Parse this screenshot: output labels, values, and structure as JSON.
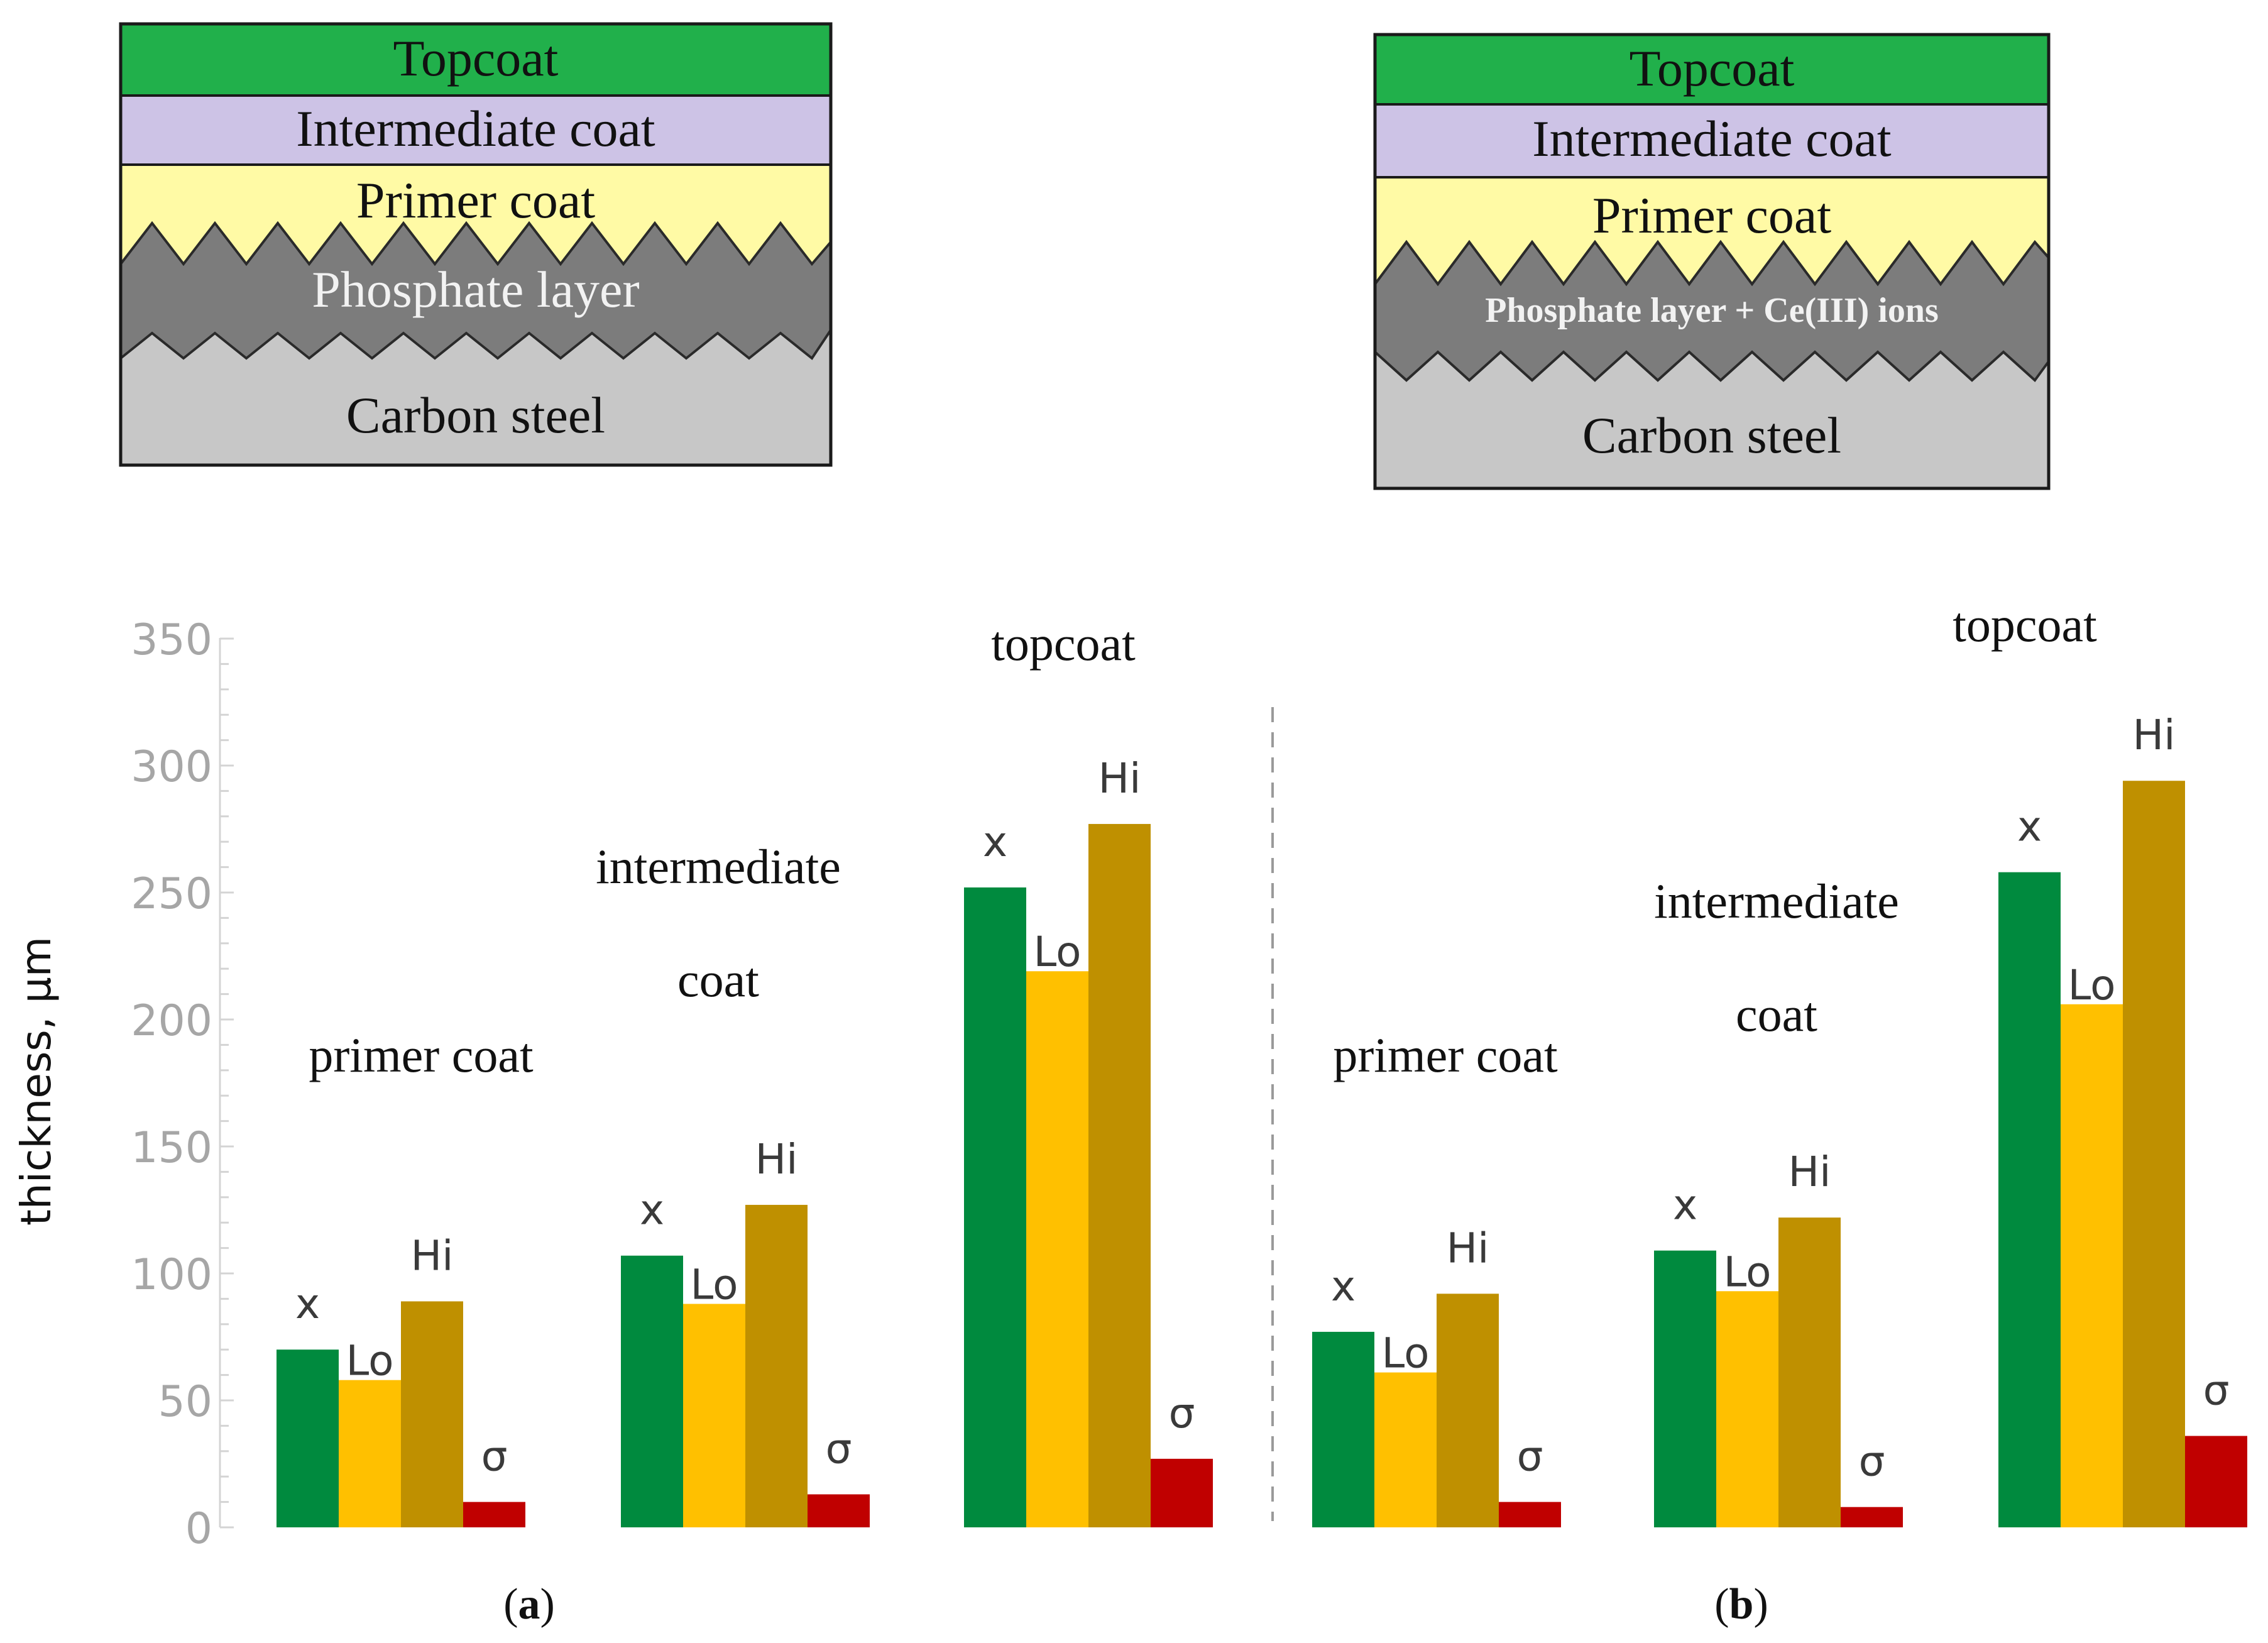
{
  "colors": {
    "mean": "#008a3e",
    "low": "#ffc000",
    "high": "#bf9000",
    "sigma": "#c00000",
    "topcoat_layer": "#21b04b",
    "intermediate_layer": "#cdc3e6",
    "primer_layer": "#fffaa5",
    "phosphate_layer": "#7c7c7c",
    "steel_layer": "#c7c7c7"
  },
  "diagrams": [
    {
      "panel": "a",
      "layers": {
        "topcoat": "Topcoat",
        "intermediate": "Intermediate coat",
        "primer": "Primer coat",
        "phosphate": "Phosphate layer",
        "steel": "Carbon steel"
      }
    },
    {
      "panel": "b",
      "layers": {
        "topcoat": "Topcoat",
        "intermediate": "Intermediate coat",
        "primer": "Primer coat",
        "phosphate": "Phosphate layer + Ce(III) ions",
        "steel": "Carbon steel"
      }
    }
  ],
  "chart_data": {
    "type": "bar",
    "ylabel": "thickness, μm",
    "ylim": [
      0,
      350
    ],
    "yticks": [
      0,
      50,
      100,
      150,
      200,
      250,
      300,
      350
    ],
    "bar_labels": [
      "x",
      "Lo",
      "Hi",
      "σ"
    ],
    "panels": [
      {
        "label_open": "(",
        "label_letter": "a",
        "label_close": ")",
        "groups": [
          {
            "title_lines": [
              "primer coat"
            ],
            "values": [
              70,
              58,
              89,
              10
            ]
          },
          {
            "title_lines": [
              "intermediate",
              "coat"
            ],
            "values": [
              107,
              88,
              127,
              13
            ]
          },
          {
            "title_lines": [
              "topcoat"
            ],
            "values": [
              252,
              219,
              277,
              27
            ]
          }
        ]
      },
      {
        "label_open": "(",
        "label_letter": "b",
        "label_close": ")",
        "groups": [
          {
            "title_lines": [
              "primer coat"
            ],
            "values": [
              77,
              61,
              92,
              10
            ]
          },
          {
            "title_lines": [
              "intermediate",
              "coat"
            ],
            "values": [
              109,
              93,
              122,
              8
            ]
          },
          {
            "title_lines": [
              "topcoat"
            ],
            "values": [
              258,
              206,
              294,
              36
            ]
          }
        ]
      }
    ]
  }
}
